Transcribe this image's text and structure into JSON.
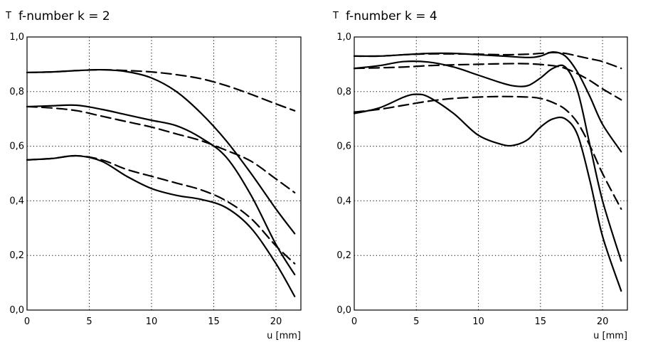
{
  "chart_data": [
    {
      "type": "line",
      "title": "f-number k = 2",
      "ylabel": "T",
      "xlabel": "u [mm]",
      "xlim": [
        0,
        22
      ],
      "ylim": [
        0,
        1.0
      ],
      "xticks": [
        "0",
        "5",
        "10",
        "15",
        "20"
      ],
      "yticks": [
        "0,0",
        "0,2",
        "0,4",
        "0,6",
        "0,8",
        "1,0"
      ],
      "grid": true,
      "series": [
        {
          "style": "solid",
          "x": [
            0,
            2,
            4,
            6,
            8,
            10,
            12,
            14,
            16,
            18,
            20,
            21.5
          ],
          "y": [
            0.87,
            0.872,
            0.877,
            0.88,
            0.873,
            0.85,
            0.8,
            0.72,
            0.62,
            0.5,
            0.37,
            0.28
          ]
        },
        {
          "style": "dashed",
          "x": [
            0,
            2,
            4,
            6,
            8,
            10,
            12,
            14,
            16,
            18,
            20,
            21.5
          ],
          "y": [
            0.87,
            0.872,
            0.877,
            0.88,
            0.877,
            0.872,
            0.862,
            0.847,
            0.822,
            0.79,
            0.755,
            0.73
          ]
        },
        {
          "style": "solid",
          "x": [
            0,
            2,
            4,
            6,
            8,
            10,
            12,
            14,
            16,
            18,
            20,
            21.5
          ],
          "y": [
            0.745,
            0.748,
            0.75,
            0.735,
            0.715,
            0.695,
            0.675,
            0.63,
            0.56,
            0.42,
            0.24,
            0.13
          ]
        },
        {
          "style": "dashed",
          "x": [
            0,
            2,
            4,
            6,
            8,
            10,
            12,
            14,
            16,
            18,
            20,
            21.5
          ],
          "y": [
            0.745,
            0.74,
            0.73,
            0.71,
            0.69,
            0.67,
            0.645,
            0.62,
            0.585,
            0.545,
            0.48,
            0.43
          ]
        },
        {
          "style": "solid",
          "x": [
            0,
            2,
            4,
            6,
            8,
            10,
            12,
            14,
            16,
            18,
            20,
            21.5
          ],
          "y": [
            0.55,
            0.555,
            0.565,
            0.545,
            0.49,
            0.445,
            0.42,
            0.405,
            0.375,
            0.3,
            0.17,
            0.05
          ]
        },
        {
          "style": "dashed",
          "x": [
            0,
            2,
            4,
            6,
            8,
            10,
            12,
            14,
            16,
            18,
            20,
            21.5
          ],
          "y": [
            0.55,
            0.555,
            0.565,
            0.55,
            0.515,
            0.49,
            0.465,
            0.44,
            0.4,
            0.335,
            0.235,
            0.17
          ]
        }
      ]
    },
    {
      "type": "line",
      "title": "f-number k = 4",
      "ylabel": "T",
      "xlabel": "u [mm]",
      "xlim": [
        0,
        22
      ],
      "ylim": [
        0,
        1.0
      ],
      "xticks": [
        "0",
        "5",
        "10",
        "15",
        "20"
      ],
      "yticks": [
        "0,0",
        "0,2",
        "0,4",
        "0,6",
        "0,8",
        "1,0"
      ],
      "grid": true,
      "series": [
        {
          "style": "solid",
          "x": [
            0,
            2,
            4,
            6,
            8,
            10,
            12,
            14,
            15,
            16,
            17,
            18,
            19,
            20,
            21.5
          ],
          "y": [
            0.93,
            0.93,
            0.935,
            0.94,
            0.94,
            0.935,
            0.93,
            0.925,
            0.93,
            0.945,
            0.93,
            0.87,
            0.78,
            0.68,
            0.58
          ]
        },
        {
          "style": "dashed",
          "x": [
            0,
            2,
            4,
            6,
            8,
            10,
            12,
            14,
            15,
            16,
            17,
            18,
            19,
            20,
            21.5
          ],
          "y": [
            0.93,
            0.93,
            0.935,
            0.938,
            0.938,
            0.937,
            0.935,
            0.937,
            0.94,
            0.943,
            0.94,
            0.93,
            0.92,
            0.91,
            0.885
          ]
        },
        {
          "style": "solid",
          "x": [
            0,
            2,
            4,
            6,
            8,
            10,
            12,
            13,
            14,
            15,
            16,
            17,
            18,
            19,
            20,
            21.5
          ],
          "y": [
            0.885,
            0.895,
            0.91,
            0.908,
            0.89,
            0.86,
            0.83,
            0.82,
            0.822,
            0.85,
            0.885,
            0.89,
            0.8,
            0.6,
            0.4,
            0.18
          ]
        },
        {
          "style": "dashed",
          "x": [
            0,
            2,
            4,
            6,
            8,
            10,
            12,
            14,
            16,
            17,
            18,
            19,
            20,
            21.5
          ],
          "y": [
            0.885,
            0.887,
            0.89,
            0.895,
            0.898,
            0.9,
            0.902,
            0.902,
            0.895,
            0.885,
            0.865,
            0.84,
            0.81,
            0.77
          ]
        },
        {
          "style": "solid",
          "x": [
            0,
            2,
            4,
            5,
            6,
            8,
            10,
            12,
            13,
            14,
            15,
            16,
            17,
            18,
            19,
            20,
            21.5
          ],
          "y": [
            0.72,
            0.74,
            0.78,
            0.79,
            0.78,
            0.72,
            0.64,
            0.605,
            0.605,
            0.625,
            0.67,
            0.7,
            0.7,
            0.64,
            0.47,
            0.27,
            0.07
          ]
        },
        {
          "style": "dashed",
          "x": [
            0,
            2,
            4,
            6,
            8,
            10,
            12,
            14,
            15,
            16,
            17,
            18,
            19,
            20,
            21.5
          ],
          "y": [
            0.725,
            0.735,
            0.75,
            0.765,
            0.775,
            0.78,
            0.782,
            0.78,
            0.775,
            0.76,
            0.735,
            0.685,
            0.6,
            0.5,
            0.37
          ]
        }
      ]
    }
  ]
}
